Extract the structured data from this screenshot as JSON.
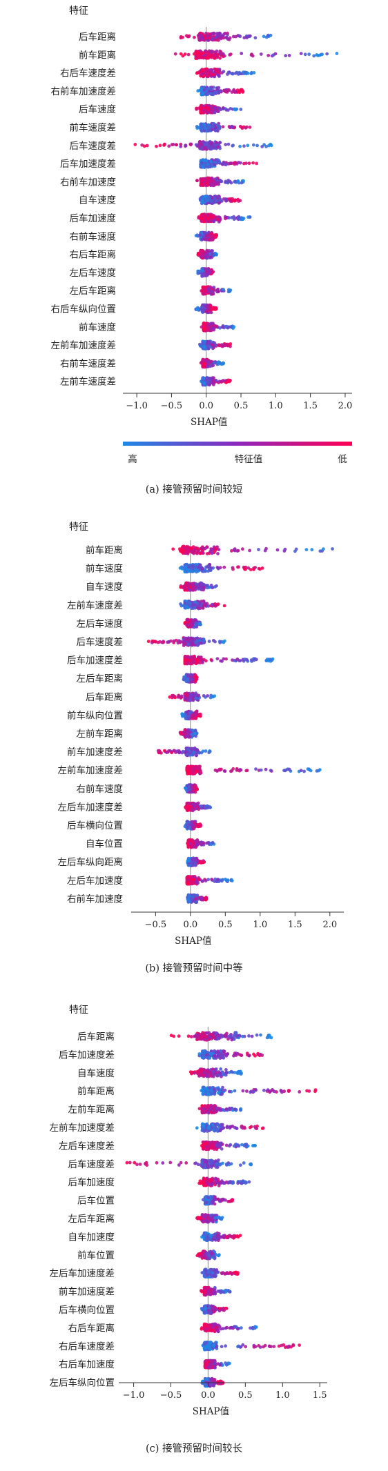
{
  "chart_data": [
    {
      "type": "scatter",
      "subtype": "shap-beeswarm",
      "caption": "(a)  接管预留时间较短",
      "feature_header": "特征",
      "xlabel": "SHAP值",
      "xlim": [
        -1.2,
        2.1
      ],
      "xticks": [
        -1.0,
        -0.5,
        0.0,
        0.5,
        1.0,
        1.5,
        2.0
      ],
      "xtick_labels": [
        "−1.0",
        "−0.5",
        "0.0",
        "0.5",
        "1.0",
        "1.5",
        "2.0"
      ],
      "colorbar": {
        "high_label": "高",
        "mid_label": "特征值",
        "low_label": "低"
      },
      "features": [
        {
          "name": "后车距离",
          "min": -0.4,
          "max": 0.95,
          "core": [
            -0.1,
            0.35
          ]
        },
        {
          "name": "前车距离",
          "min": -0.45,
          "max": 1.95,
          "core": [
            -0.15,
            0.25
          ]
        },
        {
          "name": "右后车速度差",
          "min": -0.15,
          "max": 0.7,
          "core": [
            -0.08,
            0.2
          ]
        },
        {
          "name": "右前车加速度差",
          "min": -0.12,
          "max": 0.55,
          "core": [
            -0.07,
            0.2
          ]
        },
        {
          "name": "后车速度",
          "min": -0.15,
          "max": 0.5,
          "core": [
            -0.08,
            0.2
          ]
        },
        {
          "name": "前车速度差",
          "min": -0.15,
          "max": 0.65,
          "core": [
            -0.08,
            0.2
          ]
        },
        {
          "name": "后车速度差",
          "min": -1.05,
          "max": 0.95,
          "core": [
            -0.1,
            0.2
          ]
        },
        {
          "name": "后车加速度差",
          "min": -0.15,
          "max": 0.75,
          "core": [
            -0.08,
            0.2
          ]
        },
        {
          "name": "右前车加速度",
          "min": -0.15,
          "max": 0.55,
          "core": [
            -0.08,
            0.2
          ]
        },
        {
          "name": "自车速度",
          "min": -0.12,
          "max": 0.5,
          "core": [
            -0.07,
            0.2
          ]
        },
        {
          "name": "后车加速度",
          "min": -0.12,
          "max": 0.65,
          "core": [
            -0.07,
            0.2
          ]
        },
        {
          "name": "右前车速度",
          "min": -0.15,
          "max": 0.15,
          "core": [
            -0.08,
            0.1
          ]
        },
        {
          "name": "右后车距离",
          "min": -0.12,
          "max": 0.15,
          "core": [
            -0.08,
            0.1
          ]
        },
        {
          "name": "左后车速度",
          "min": -0.12,
          "max": 0.1,
          "core": [
            -0.06,
            0.08
          ]
        },
        {
          "name": "左后车距离",
          "min": -0.08,
          "max": 0.35,
          "core": [
            -0.05,
            0.12
          ]
        },
        {
          "name": "右后车纵向位置",
          "min": -0.15,
          "max": 0.15,
          "core": [
            -0.06,
            0.08
          ]
        },
        {
          "name": "前车速度",
          "min": -0.08,
          "max": 0.4,
          "core": [
            -0.04,
            0.12
          ]
        },
        {
          "name": "左前车加速度差",
          "min": -0.1,
          "max": 0.35,
          "core": [
            -0.05,
            0.12
          ]
        },
        {
          "name": "右前车速度差",
          "min": -0.1,
          "max": 0.25,
          "core": [
            -0.05,
            0.1
          ]
        },
        {
          "name": "左前车速度差",
          "min": -0.1,
          "max": 0.35,
          "core": [
            -0.05,
            0.12
          ]
        }
      ]
    },
    {
      "type": "scatter",
      "subtype": "shap-beeswarm",
      "caption": "(b)  接管预留时间中等",
      "feature_header": "特征",
      "xlabel": "SHAP值",
      "xlim": [
        -0.85,
        2.2
      ],
      "xticks": [
        -0.5,
        0.0,
        0.5,
        1.0,
        1.5,
        2.0
      ],
      "xtick_labels": [
        "−0.5",
        "0.0",
        "0.5",
        "1.0",
        "1.5",
        "2.0"
      ],
      "features": [
        {
          "name": "前车距离",
          "min": -0.3,
          "max": 2.05,
          "core": [
            -0.12,
            0.4
          ]
        },
        {
          "name": "前车速度",
          "min": -0.15,
          "max": 1.05,
          "core": [
            -0.08,
            0.3
          ]
        },
        {
          "name": "自车速度",
          "min": -0.15,
          "max": 0.4,
          "core": [
            -0.08,
            0.2
          ]
        },
        {
          "name": "左前车速度差",
          "min": -0.15,
          "max": 0.5,
          "core": [
            -0.08,
            0.2
          ]
        },
        {
          "name": "左后车速度",
          "min": -0.08,
          "max": 0.15,
          "core": [
            -0.05,
            0.1
          ]
        },
        {
          "name": "后车速度差",
          "min": -0.75,
          "max": 0.6,
          "core": [
            -0.1,
            0.2
          ]
        },
        {
          "name": "后车加速度差",
          "min": -0.15,
          "max": 1.2,
          "core": [
            -0.08,
            0.2
          ]
        },
        {
          "name": "左后车距离",
          "min": -0.1,
          "max": 0.1,
          "core": [
            -0.06,
            0.08
          ]
        },
        {
          "name": "后车距离",
          "min": -0.3,
          "max": 0.35,
          "core": [
            -0.08,
            0.12
          ]
        },
        {
          "name": "前车纵向位置",
          "min": -0.12,
          "max": 0.15,
          "core": [
            -0.07,
            0.1
          ]
        },
        {
          "name": "左前车距离",
          "min": -0.15,
          "max": 0.1,
          "core": [
            -0.08,
            0.08
          ]
        },
        {
          "name": "前车加速度差",
          "min": -0.5,
          "max": 0.3,
          "core": [
            -0.06,
            0.1
          ]
        },
        {
          "name": "左前车加速度差",
          "min": -0.08,
          "max": 1.95,
          "core": [
            -0.05,
            0.15
          ]
        },
        {
          "name": "右前车速度",
          "min": -0.08,
          "max": 0.1,
          "core": [
            -0.05,
            0.08
          ]
        },
        {
          "name": "左后车加速度差",
          "min": -0.08,
          "max": 0.3,
          "core": [
            -0.05,
            0.12
          ]
        },
        {
          "name": "后车横向位置",
          "min": -0.08,
          "max": 0.15,
          "core": [
            -0.05,
            0.08
          ]
        },
        {
          "name": "自车位置",
          "min": -0.05,
          "max": 0.35,
          "core": [
            -0.03,
            0.1
          ]
        },
        {
          "name": "左后车纵向距离",
          "min": -0.05,
          "max": 0.2,
          "core": [
            -0.03,
            0.1
          ]
        },
        {
          "name": "左后车加速度",
          "min": -0.08,
          "max": 0.6,
          "core": [
            -0.05,
            0.12
          ]
        },
        {
          "name": "右前车加速度",
          "min": -0.05,
          "max": 0.25,
          "core": [
            -0.03,
            0.1
          ]
        }
      ]
    },
    {
      "type": "scatter",
      "subtype": "shap-beeswarm",
      "caption": "(c)  接管预留时间较长",
      "feature_header": "特征",
      "xlabel": "SHAP值",
      "xlim": [
        -1.2,
        1.6
      ],
      "xticks": [
        -1.0,
        -0.5,
        0.0,
        0.5,
        1.0,
        1.5
      ],
      "xtick_labels": [
        "−1.0",
        "−0.5",
        "0.0",
        "0.5",
        "1.0",
        "1.5"
      ],
      "features": [
        {
          "name": "后车距离",
          "min": -0.5,
          "max": 0.85,
          "core": [
            -0.15,
            0.4
          ]
        },
        {
          "name": "后车加速度差",
          "min": -0.15,
          "max": 0.75,
          "core": [
            -0.08,
            0.25
          ]
        },
        {
          "name": "自车速度",
          "min": -0.25,
          "max": 0.45,
          "core": [
            -0.12,
            0.25
          ]
        },
        {
          "name": "前车距离",
          "min": -0.12,
          "max": 1.45,
          "core": [
            -0.07,
            0.2
          ]
        },
        {
          "name": "左前车距离",
          "min": -0.15,
          "max": 0.45,
          "core": [
            -0.08,
            0.12
          ]
        },
        {
          "name": "左前车加速度差",
          "min": -0.15,
          "max": 0.75,
          "core": [
            -0.08,
            0.2
          ]
        },
        {
          "name": "左后车速度差",
          "min": -0.15,
          "max": 0.65,
          "core": [
            -0.07,
            0.2
          ]
        },
        {
          "name": "后车速度差",
          "min": -1.1,
          "max": 0.6,
          "core": [
            -0.08,
            0.15
          ]
        },
        {
          "name": "后车加速度",
          "min": -0.12,
          "max": 0.6,
          "core": [
            -0.06,
            0.15
          ]
        },
        {
          "name": "后车位置",
          "min": -0.08,
          "max": 0.35,
          "core": [
            -0.04,
            0.1
          ]
        },
        {
          "name": "左后车距离",
          "min": -0.15,
          "max": 0.2,
          "core": [
            -0.08,
            0.12
          ]
        },
        {
          "name": "自车加速度",
          "min": -0.1,
          "max": 0.45,
          "core": [
            -0.05,
            0.15
          ]
        },
        {
          "name": "前车位置",
          "min": -0.15,
          "max": 0.15,
          "core": [
            -0.08,
            0.1
          ]
        },
        {
          "name": "左后车加速度差",
          "min": -0.1,
          "max": 0.4,
          "core": [
            -0.05,
            0.12
          ]
        },
        {
          "name": "前车加速度差",
          "min": -0.1,
          "max": 0.3,
          "core": [
            -0.05,
            0.1
          ]
        },
        {
          "name": "后车横向位置",
          "min": -0.1,
          "max": 0.25,
          "core": [
            -0.05,
            0.1
          ]
        },
        {
          "name": "右后车距离",
          "min": -0.1,
          "max": 0.65,
          "core": [
            -0.05,
            0.15
          ]
        },
        {
          "name": "右后车速度差",
          "min": -0.1,
          "max": 1.25,
          "core": [
            -0.05,
            0.12
          ]
        },
        {
          "name": "右后车加速度",
          "min": -0.08,
          "max": 0.3,
          "core": [
            -0.04,
            0.1
          ]
        },
        {
          "name": "左后车纵向位置",
          "min": -0.08,
          "max": 0.2,
          "core": [
            -0.04,
            0.1
          ]
        }
      ]
    }
  ]
}
